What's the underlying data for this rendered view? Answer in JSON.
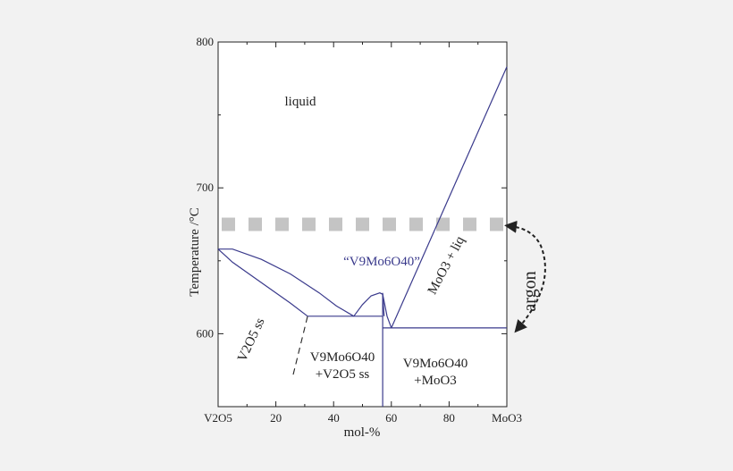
{
  "chart_data": {
    "type": "line",
    "xlabel": "mol-%",
    "ylabel": "Temperature /°C",
    "xlim": [
      0,
      100
    ],
    "ylim": [
      550,
      800
    ],
    "x_ticks": [
      {
        "value": 0,
        "label": "V2O5"
      },
      {
        "value": 20,
        "label": "20"
      },
      {
        "value": 40,
        "label": "40"
      },
      {
        "value": 60,
        "label": "60"
      },
      {
        "value": 80,
        "label": "80"
      },
      {
        "value": 100,
        "label": "MoO3"
      }
    ],
    "y_ticks": [
      {
        "value": 600,
        "label": "600"
      },
      {
        "value": 700,
        "label": "700"
      },
      {
        "value": 800,
        "label": "800"
      }
    ],
    "grid": false,
    "colors": {
      "phase_lines": "#3a3a8c",
      "band": "#c4c4c4",
      "compound_label": "#3a3a8c"
    },
    "series": [
      {
        "id": "liquidus-v2o5",
        "x": [
          0,
          5,
          15,
          25,
          35,
          41,
          47
        ],
        "y": [
          658,
          658,
          651,
          641,
          628,
          619,
          612
        ]
      },
      {
        "id": "solidus-v2o5",
        "x": [
          0,
          5,
          15,
          25,
          31
        ],
        "y": [
          658,
          649,
          635,
          621,
          612
        ]
      },
      {
        "id": "eutectic-left",
        "x": [
          31,
          57
        ],
        "y": [
          612,
          612
        ]
      },
      {
        "id": "compound-liquidus",
        "x": [
          47,
          50,
          53,
          56,
          57,
          57.5
        ],
        "y": [
          612,
          620,
          626,
          628,
          627,
          612
        ]
      },
      {
        "id": "compound-vertical",
        "x": [
          57,
          57
        ],
        "y": [
          628,
          550
        ]
      },
      {
        "id": "compound-right-branch",
        "x": [
          57,
          58.5,
          60
        ],
        "y": [
          627,
          612,
          604
        ]
      },
      {
        "id": "moo3-liquidus",
        "x": [
          60,
          100
        ],
        "y": [
          604,
          783
        ]
      },
      {
        "id": "eutectic-right",
        "x": [
          57,
          100
        ],
        "y": [
          604,
          604
        ]
      }
    ],
    "dashed_segments": [
      {
        "id": "ss-boundary-dashed",
        "x": [
          26,
          31
        ],
        "y": [
          572,
          612
        ]
      }
    ],
    "bands": [
      {
        "id": "argon-temperature-band",
        "y": 675,
        "x": [
          0,
          100
        ],
        "style": "dashed-thick"
      }
    ],
    "annotations": {
      "liquid": "liquid",
      "v2o5_ss": "V2O5 ss",
      "compound": "“V9Mo6O40”",
      "moo3_liq": "MoO3 + liq",
      "mix_left_1": "V9Mo6O40",
      "mix_left_2": "+V2O5 ss",
      "mix_right_1": "V9Mo6O40",
      "mix_right_2": "+MoO3",
      "argon": "argon"
    }
  }
}
